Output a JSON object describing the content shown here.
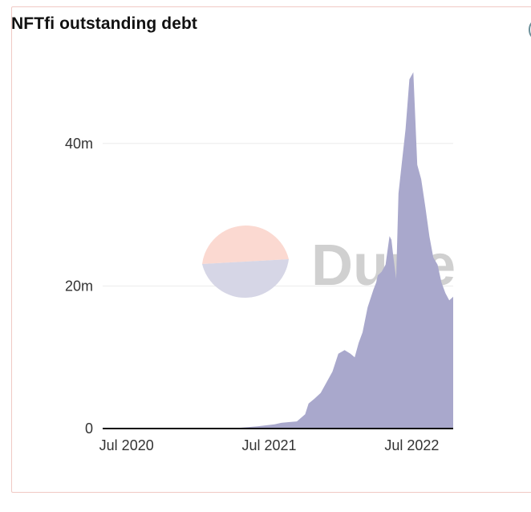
{
  "header": {
    "title": "NFTfi outstanding debt"
  },
  "icons": {
    "corner": "info-circle-icon"
  },
  "watermark": {
    "text": "Dune"
  },
  "colors": {
    "area": "#a9a8cc",
    "axis": "#111111",
    "grid": "#ececec",
    "border": "#f0c9c4"
  },
  "chart_data": {
    "type": "area",
    "title": "NFTfi outstanding debt",
    "xlabel": "",
    "ylabel": "",
    "x_ticks": [
      "Jul 2020",
      "Jul 2021",
      "Jul 2022"
    ],
    "y_ticks": [
      "0",
      "20m",
      "40m"
    ],
    "ylim": [
      0,
      50000000
    ],
    "xlim": [
      "2020-05-01",
      "2022-10-15"
    ],
    "grid": true,
    "series": [
      {
        "x": [
          "2020-05-01",
          "2021-01-15",
          "2021-03-01",
          "2021-04-15",
          "2021-06-01",
          "2021-07-15",
          "2021-08-01",
          "2021-08-20",
          "2021-09-10",
          "2021-10-01",
          "2021-10-10",
          "2021-10-25",
          "2021-11-10",
          "2021-11-25",
          "2021-12-10",
          "2021-12-25",
          "2022-01-10",
          "2022-01-25",
          "2022-02-05",
          "2022-02-15",
          "2022-02-25",
          "2022-03-10",
          "2022-03-25",
          "2022-04-01",
          "2022-04-05",
          "2022-04-15",
          "2022-04-25",
          "2022-05-05",
          "2022-05-10",
          "2022-05-15",
          "2022-05-22",
          "2022-05-28",
          "2022-06-05",
          "2022-06-15",
          "2022-06-25",
          "2022-07-05",
          "2022-07-15",
          "2022-07-25",
          "2022-08-05",
          "2022-08-15",
          "2022-08-25",
          "2022-09-05",
          "2022-09-15",
          "2022-09-25",
          "2022-10-05",
          "2022-10-15"
        ],
        "y": [
          0,
          0,
          0,
          100000,
          300000,
          600000,
          800000,
          900000,
          1000000,
          2000000,
          3500000,
          4200000,
          5000000,
          6500000,
          8000000,
          10500000,
          11000000,
          10500000,
          10000000,
          12000000,
          13500000,
          17000000,
          19500000,
          20500000,
          21500000,
          22000000,
          23000000,
          27000000,
          26500000,
          24000000,
          21000000,
          33000000,
          37000000,
          42000000,
          49000000,
          50000000,
          37000000,
          35000000,
          31000000,
          27000000,
          24000000,
          23000000,
          20500000,
          19000000,
          18000000,
          18500000
        ]
      }
    ]
  }
}
